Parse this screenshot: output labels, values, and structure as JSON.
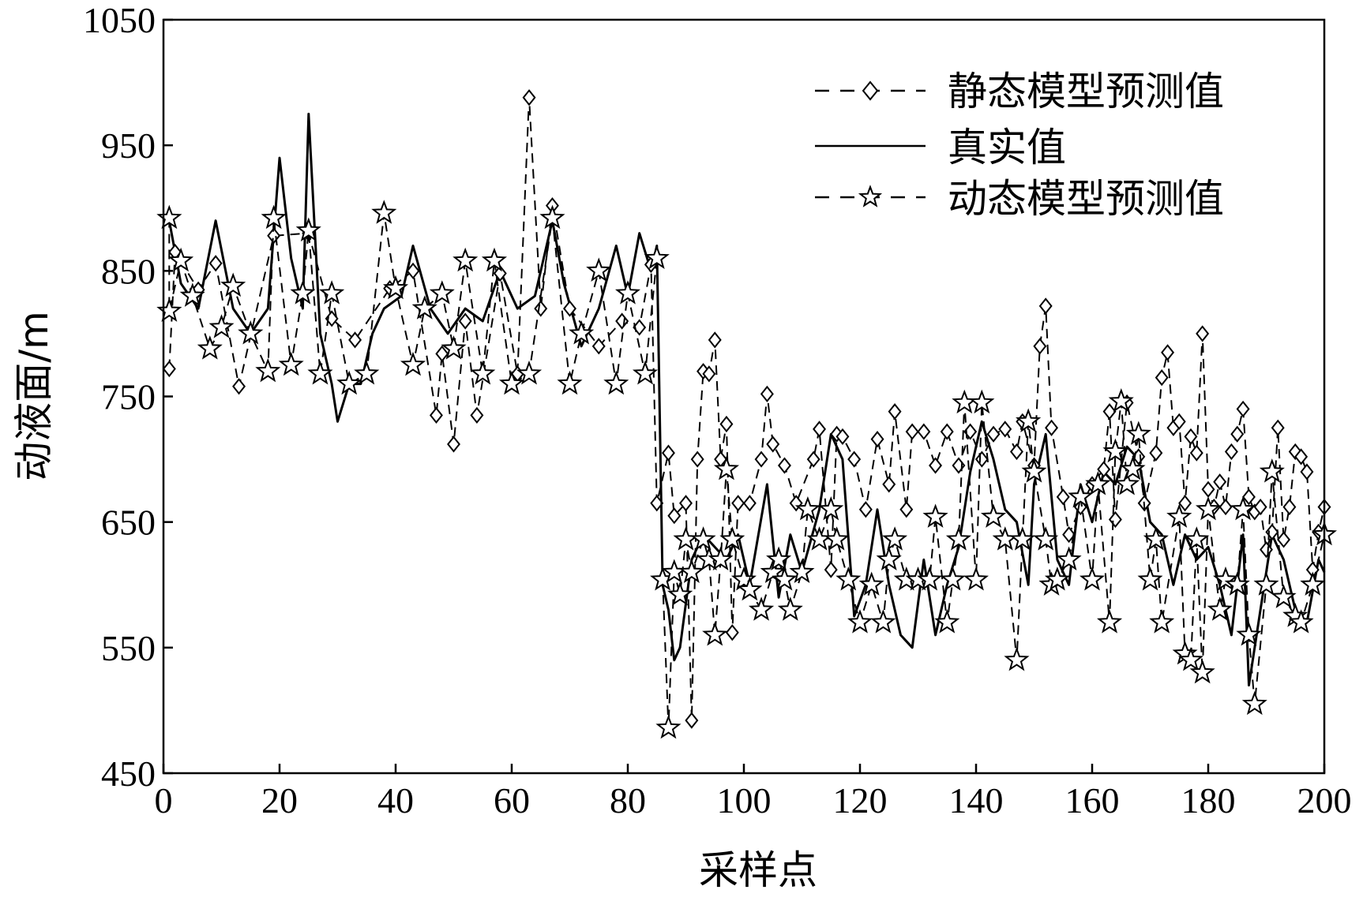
{
  "chart_data": {
    "type": "line",
    "xlabel": "采样点",
    "ylabel": "动液面/m",
    "xlim": [
      0,
      200
    ],
    "ylim": [
      450,
      1050
    ],
    "xticks": [
      "0",
      "20",
      "40",
      "60",
      "80",
      "100",
      "120",
      "140",
      "160",
      "180",
      "200"
    ],
    "yticks": [
      "450",
      "550",
      "650",
      "750",
      "850",
      "950",
      "1050"
    ],
    "grid": false,
    "legend_position": "top-right",
    "series": [
      {
        "name": "静态模型预测值",
        "style": "dashed",
        "marker": "diamond",
        "key_points": [
          [
            1,
            772
          ],
          [
            2,
            865
          ],
          [
            6,
            835
          ],
          [
            9,
            856
          ],
          [
            13,
            758
          ],
          [
            19,
            878
          ],
          [
            25,
            880
          ],
          [
            29,
            812
          ],
          [
            33,
            795
          ],
          [
            39,
            836
          ],
          [
            43,
            850
          ],
          [
            47,
            735
          ],
          [
            48,
            784
          ],
          [
            50,
            712
          ],
          [
            52,
            810
          ],
          [
            54,
            735
          ],
          [
            58,
            848
          ],
          [
            61,
            768
          ],
          [
            63,
            988
          ],
          [
            65,
            820
          ],
          [
            67,
            902
          ],
          [
            70,
            820
          ],
          [
            75,
            790
          ],
          [
            79,
            810
          ],
          [
            82,
            805
          ],
          [
            84,
            855
          ],
          [
            85,
            665
          ],
          [
            87,
            705
          ],
          [
            88,
            655
          ],
          [
            90,
            665
          ],
          [
            91,
            492
          ],
          [
            92,
            700
          ],
          [
            93,
            770
          ],
          [
            94,
            768
          ],
          [
            95,
            795
          ],
          [
            96,
            700
          ],
          [
            97,
            728
          ],
          [
            98,
            562
          ],
          [
            99,
            665
          ],
          [
            101,
            665
          ],
          [
            103,
            700
          ],
          [
            104,
            752
          ],
          [
            105,
            712
          ],
          [
            107,
            695
          ],
          [
            109,
            665
          ],
          [
            112,
            700
          ],
          [
            113,
            724
          ],
          [
            115,
            612
          ],
          [
            116,
            720
          ],
          [
            117,
            718
          ],
          [
            119,
            700
          ],
          [
            121,
            660
          ],
          [
            123,
            716
          ],
          [
            125,
            680
          ],
          [
            126,
            738
          ],
          [
            128,
            660
          ],
          [
            129,
            722
          ],
          [
            131,
            722
          ],
          [
            133,
            695
          ],
          [
            135,
            722
          ],
          [
            137,
            695
          ],
          [
            139,
            722
          ],
          [
            141,
            700
          ],
          [
            143,
            720
          ],
          [
            145,
            724
          ],
          [
            147,
            706
          ],
          [
            148,
            730
          ],
          [
            150,
            695
          ],
          [
            151,
            790
          ],
          [
            152,
            822
          ],
          [
            153,
            725
          ],
          [
            155,
            670
          ],
          [
            156,
            640
          ],
          [
            158,
            662
          ],
          [
            160,
            680
          ],
          [
            162,
            692
          ],
          [
            163,
            738
          ],
          [
            164,
            652
          ],
          [
            166,
            745
          ],
          [
            168,
            702
          ],
          [
            169,
            665
          ],
          [
            171,
            705
          ],
          [
            172,
            765
          ],
          [
            173,
            785
          ],
          [
            174,
            725
          ],
          [
            175,
            730
          ],
          [
            176,
            665
          ],
          [
            177,
            718
          ],
          [
            178,
            705
          ],
          [
            179,
            800
          ],
          [
            180,
            676
          ],
          [
            181,
            662
          ],
          [
            182,
            682
          ],
          [
            183,
            662
          ],
          [
            184,
            706
          ],
          [
            185,
            720
          ],
          [
            186,
            740
          ],
          [
            187,
            670
          ],
          [
            188,
            658
          ],
          [
            189,
            662
          ],
          [
            190,
            628
          ],
          [
            191,
            642
          ],
          [
            192,
            725
          ],
          [
            193,
            636
          ],
          [
            194,
            662
          ],
          [
            195,
            706
          ],
          [
            196,
            702
          ],
          [
            197,
            690
          ],
          [
            198,
            612
          ],
          [
            199,
            642
          ],
          [
            200,
            662
          ]
        ]
      },
      {
        "name": "真实值",
        "style": "solid",
        "marker": "none",
        "key_points": [
          [
            1,
            890
          ],
          [
            3,
            840
          ],
          [
            6,
            820
          ],
          [
            9,
            890
          ],
          [
            12,
            820
          ],
          [
            15,
            800
          ],
          [
            18,
            820
          ],
          [
            20,
            940
          ],
          [
            22,
            860
          ],
          [
            24,
            820
          ],
          [
            25,
            975
          ],
          [
            27,
            800
          ],
          [
            29,
            760
          ],
          [
            30,
            730
          ],
          [
            32,
            760
          ],
          [
            34,
            760
          ],
          [
            36,
            800
          ],
          [
            38,
            820
          ],
          [
            41,
            830
          ],
          [
            43,
            870
          ],
          [
            46,
            820
          ],
          [
            49,
            800
          ],
          [
            52,
            820
          ],
          [
            55,
            810
          ],
          [
            58,
            850
          ],
          [
            61,
            820
          ],
          [
            64,
            830
          ],
          [
            67,
            890
          ],
          [
            69,
            840
          ],
          [
            72,
            790
          ],
          [
            75,
            820
          ],
          [
            78,
            870
          ],
          [
            80,
            830
          ],
          [
            82,
            880
          ],
          [
            84,
            850
          ],
          [
            85,
            870
          ],
          [
            86,
            600
          ],
          [
            87,
            580
          ],
          [
            88,
            540
          ],
          [
            89,
            550
          ],
          [
            91,
            620
          ],
          [
            93,
            640
          ],
          [
            95,
            630
          ],
          [
            97,
            620
          ],
          [
            99,
            640
          ],
          [
            101,
            600
          ],
          [
            104,
            680
          ],
          [
            106,
            590
          ],
          [
            108,
            640
          ],
          [
            110,
            610
          ],
          [
            113,
            660
          ],
          [
            115,
            720
          ],
          [
            117,
            700
          ],
          [
            119,
            575
          ],
          [
            121,
            600
          ],
          [
            123,
            660
          ],
          [
            125,
            600
          ],
          [
            127,
            560
          ],
          [
            129,
            550
          ],
          [
            131,
            620
          ],
          [
            133,
            560
          ],
          [
            135,
            600
          ],
          [
            137,
            630
          ],
          [
            139,
            690
          ],
          [
            141,
            730
          ],
          [
            143,
            700
          ],
          [
            145,
            660
          ],
          [
            147,
            650
          ],
          [
            149,
            600
          ],
          [
            150,
            680
          ],
          [
            152,
            720
          ],
          [
            154,
            620
          ],
          [
            156,
            600
          ],
          [
            158,
            680
          ],
          [
            160,
            650
          ],
          [
            162,
            690
          ],
          [
            164,
            680
          ],
          [
            166,
            710
          ],
          [
            168,
            700
          ],
          [
            170,
            650
          ],
          [
            172,
            640
          ],
          [
            174,
            600
          ],
          [
            176,
            640
          ],
          [
            178,
            620
          ],
          [
            180,
            630
          ],
          [
            182,
            600
          ],
          [
            184,
            560
          ],
          [
            186,
            640
          ],
          [
            187,
            520
          ],
          [
            189,
            580
          ],
          [
            191,
            640
          ],
          [
            193,
            620
          ],
          [
            195,
            580
          ],
          [
            197,
            570
          ],
          [
            199,
            620
          ],
          [
            200,
            610
          ]
        ]
      },
      {
        "name": "动态模型预测值",
        "style": "dashed",
        "marker": "star",
        "key_points": [
          [
            1,
            892
          ],
          [
            1,
            818
          ],
          [
            3,
            858
          ],
          [
            5,
            830
          ],
          [
            8,
            788
          ],
          [
            10,
            805
          ],
          [
            12,
            838
          ],
          [
            15,
            800
          ],
          [
            18,
            770
          ],
          [
            19,
            892
          ],
          [
            22,
            775
          ],
          [
            24,
            832
          ],
          [
            25,
            882
          ],
          [
            27,
            768
          ],
          [
            29,
            832
          ],
          [
            32,
            760
          ],
          [
            35,
            768
          ],
          [
            38,
            896
          ],
          [
            40,
            836
          ],
          [
            43,
            775
          ],
          [
            45,
            820
          ],
          [
            48,
            832
          ],
          [
            50,
            788
          ],
          [
            52,
            858
          ],
          [
            55,
            768
          ],
          [
            57,
            858
          ],
          [
            60,
            760
          ],
          [
            63,
            768
          ],
          [
            67,
            892
          ],
          [
            70,
            760
          ],
          [
            72,
            800
          ],
          [
            75,
            850
          ],
          [
            78,
            760
          ],
          [
            80,
            832
          ],
          [
            83,
            768
          ],
          [
            85,
            860
          ],
          [
            86,
            604
          ],
          [
            87,
            486
          ],
          [
            88,
            610
          ],
          [
            89,
            592
          ],
          [
            90,
            636
          ],
          [
            91,
            610
          ],
          [
            93,
            636
          ],
          [
            94,
            620
          ],
          [
            95,
            560
          ],
          [
            96,
            620
          ],
          [
            97,
            692
          ],
          [
            98,
            636
          ],
          [
            100,
            604
          ],
          [
            101,
            596
          ],
          [
            103,
            580
          ],
          [
            105,
            610
          ],
          [
            106,
            620
          ],
          [
            107,
            604
          ],
          [
            108,
            580
          ],
          [
            110,
            610
          ],
          [
            111,
            660
          ],
          [
            113,
            636
          ],
          [
            115,
            660
          ],
          [
            116,
            636
          ],
          [
            118,
            604
          ],
          [
            120,
            570
          ],
          [
            122,
            600
          ],
          [
            124,
            570
          ],
          [
            125,
            620
          ],
          [
            126,
            636
          ],
          [
            128,
            604
          ],
          [
            130,
            604
          ],
          [
            132,
            604
          ],
          [
            133,
            654
          ],
          [
            135,
            570
          ],
          [
            136,
            604
          ],
          [
            137,
            636
          ],
          [
            138,
            745
          ],
          [
            140,
            604
          ],
          [
            141,
            745
          ],
          [
            143,
            654
          ],
          [
            145,
            636
          ],
          [
            147,
            540
          ],
          [
            148,
            636
          ],
          [
            149,
            730
          ],
          [
            150,
            690
          ],
          [
            152,
            636
          ],
          [
            153,
            600
          ],
          [
            154,
            604
          ],
          [
            156,
            620
          ],
          [
            158,
            670
          ],
          [
            160,
            604
          ],
          [
            161,
            680
          ],
          [
            163,
            570
          ],
          [
            164,
            706
          ],
          [
            165,
            746
          ],
          [
            166,
            680
          ],
          [
            167,
            692
          ],
          [
            168,
            720
          ],
          [
            170,
            604
          ],
          [
            171,
            636
          ],
          [
            172,
            570
          ],
          [
            175,
            654
          ],
          [
            176,
            545
          ],
          [
            177,
            540
          ],
          [
            178,
            636
          ],
          [
            179,
            530
          ],
          [
            180,
            660
          ],
          [
            182,
            580
          ],
          [
            183,
            604
          ],
          [
            185,
            600
          ],
          [
            186,
            660
          ],
          [
            187,
            560
          ],
          [
            188,
            505
          ],
          [
            190,
            600
          ],
          [
            191,
            690
          ],
          [
            193,
            590
          ],
          [
            195,
            575
          ],
          [
            196,
            570
          ],
          [
            198,
            600
          ],
          [
            200,
            640
          ]
        ]
      }
    ]
  }
}
